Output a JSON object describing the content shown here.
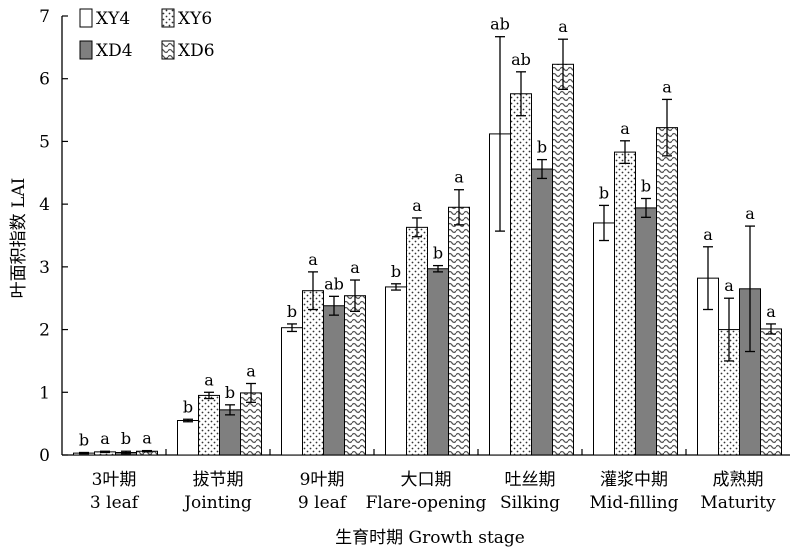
{
  "chart_data": {
    "type": "bar",
    "ylabel": "叶面积指数 LAI",
    "xlabel": "生育时期 Growth stage",
    "ylim": [
      0,
      7
    ],
    "yticks": [
      "0",
      "1",
      "2",
      "3",
      "4",
      "5",
      "6",
      "7"
    ],
    "legend_position": "top-left",
    "categories": [
      {
        "cn": "3叶期",
        "en": "3 leaf"
      },
      {
        "cn": "拔节期",
        "en": "Jointing"
      },
      {
        "cn": "9叶期",
        "en": "9 leaf"
      },
      {
        "cn": "大口期",
        "en": "Flare-opening"
      },
      {
        "cn": "吐丝期",
        "en": "Silking"
      },
      {
        "cn": "灌浆中期",
        "en": "Mid-filling"
      },
      {
        "cn": "成熟期",
        "en": "Maturity"
      }
    ],
    "series": [
      {
        "name": "XY4",
        "pattern": "white",
        "values": [
          0.03,
          0.55,
          2.03,
          2.68,
          5.12,
          3.7,
          2.82
        ],
        "errors": [
          0.01,
          0.02,
          0.06,
          0.05,
          1.55,
          0.28,
          0.5
        ],
        "letters": [
          "b",
          "b",
          "b",
          "b",
          "ab",
          "b",
          "a"
        ]
      },
      {
        "name": "XY6",
        "pattern": "dots",
        "values": [
          0.05,
          0.95,
          2.62,
          3.63,
          5.76,
          4.83,
          2.0
        ],
        "errors": [
          0.01,
          0.05,
          0.3,
          0.15,
          0.35,
          0.18,
          0.5
        ],
        "letters": [
          "a",
          "a",
          "a",
          "a",
          "ab",
          "a",
          "a"
        ]
      },
      {
        "name": "XD4",
        "pattern": "gray",
        "values": [
          0.04,
          0.72,
          2.38,
          2.97,
          4.56,
          3.94,
          2.65
        ],
        "errors": [
          0.02,
          0.08,
          0.15,
          0.05,
          0.15,
          0.15,
          1.0
        ],
        "letters": [
          "b",
          "b",
          "ab",
          "b",
          "b",
          "b",
          "a"
        ]
      },
      {
        "name": "XD6",
        "pattern": "wave",
        "values": [
          0.06,
          0.99,
          2.54,
          3.95,
          6.23,
          5.22,
          2.01
        ],
        "errors": [
          0.01,
          0.15,
          0.25,
          0.28,
          0.4,
          0.45,
          0.08
        ],
        "letters": [
          "a",
          "a",
          "a",
          "a",
          "a",
          "a",
          "a"
        ]
      }
    ],
    "colors": {
      "gray": "#7f7f7f",
      "outline": "#000000",
      "wave": "#555555"
    }
  }
}
